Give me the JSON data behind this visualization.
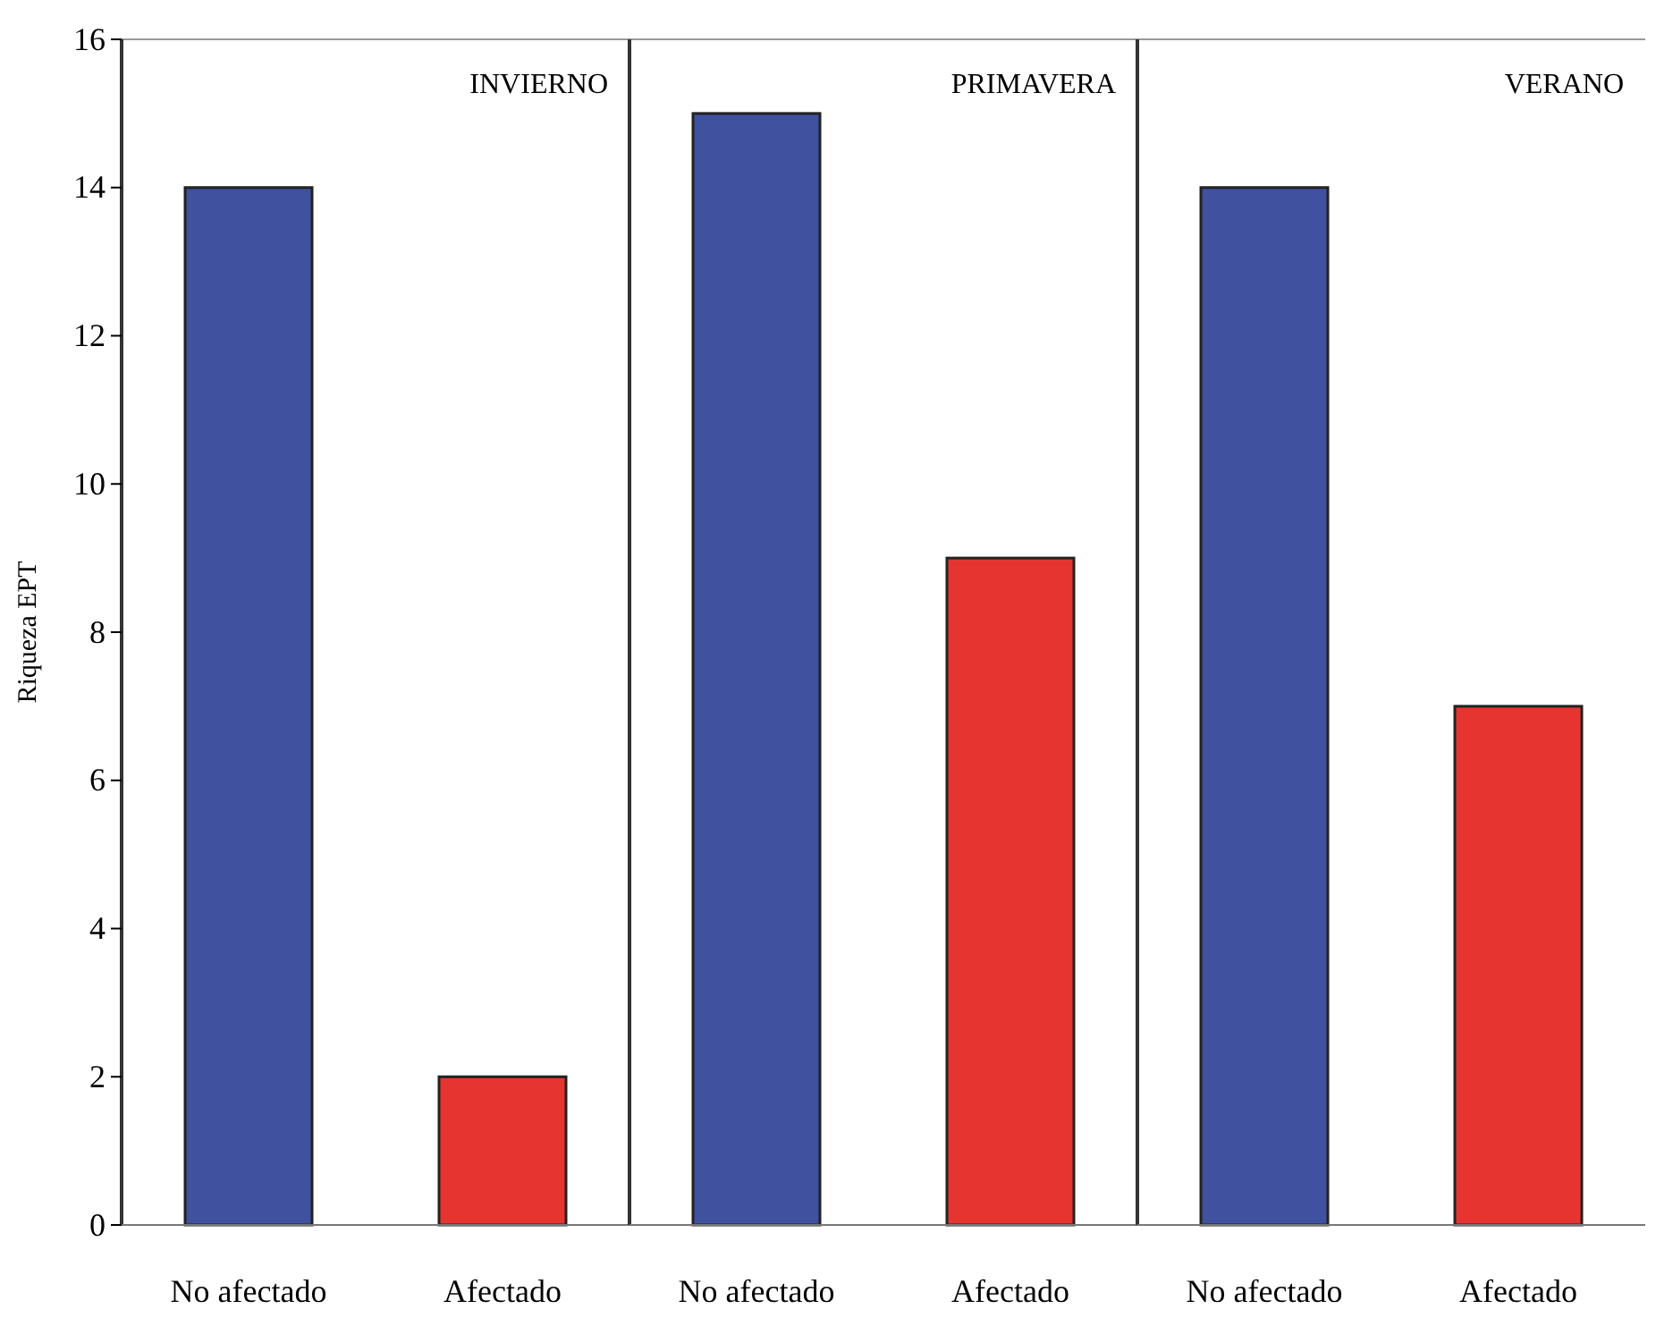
{
  "chart_data": [
    {
      "type": "bar",
      "title": "INVIERNO",
      "ylabel": "Riqueza EPT",
      "categories": [
        "No afectado",
        "Afectado"
      ],
      "values": [
        14,
        2
      ],
      "colors": [
        "#3f519f",
        "#e63530"
      ],
      "ylim": [
        0,
        16
      ],
      "yticks": [
        0,
        2,
        4,
        6,
        8,
        10,
        12,
        14,
        16
      ]
    },
    {
      "type": "bar",
      "title": "PRIMAVERA",
      "categories": [
        "No afectado",
        "Afectado"
      ],
      "values": [
        15,
        9
      ],
      "colors": [
        "#3f519f",
        "#e63530"
      ],
      "ylim": [
        0,
        16
      ],
      "yticks": [
        0,
        2,
        4,
        6,
        8,
        10,
        12,
        14,
        16
      ],
      "tick_labels": "x"
    },
    {
      "type": "bar",
      "title": "VERANO",
      "categories": [
        "No afectado",
        "Afectado"
      ],
      "values": [
        14,
        7
      ],
      "colors": [
        "#3f519f",
        "#e63530"
      ],
      "ylim": [
        0,
        16
      ],
      "yticks": [
        0,
        2,
        4,
        6,
        8,
        10,
        12,
        14,
        16
      ],
      "tick_labels": "x"
    }
  ]
}
